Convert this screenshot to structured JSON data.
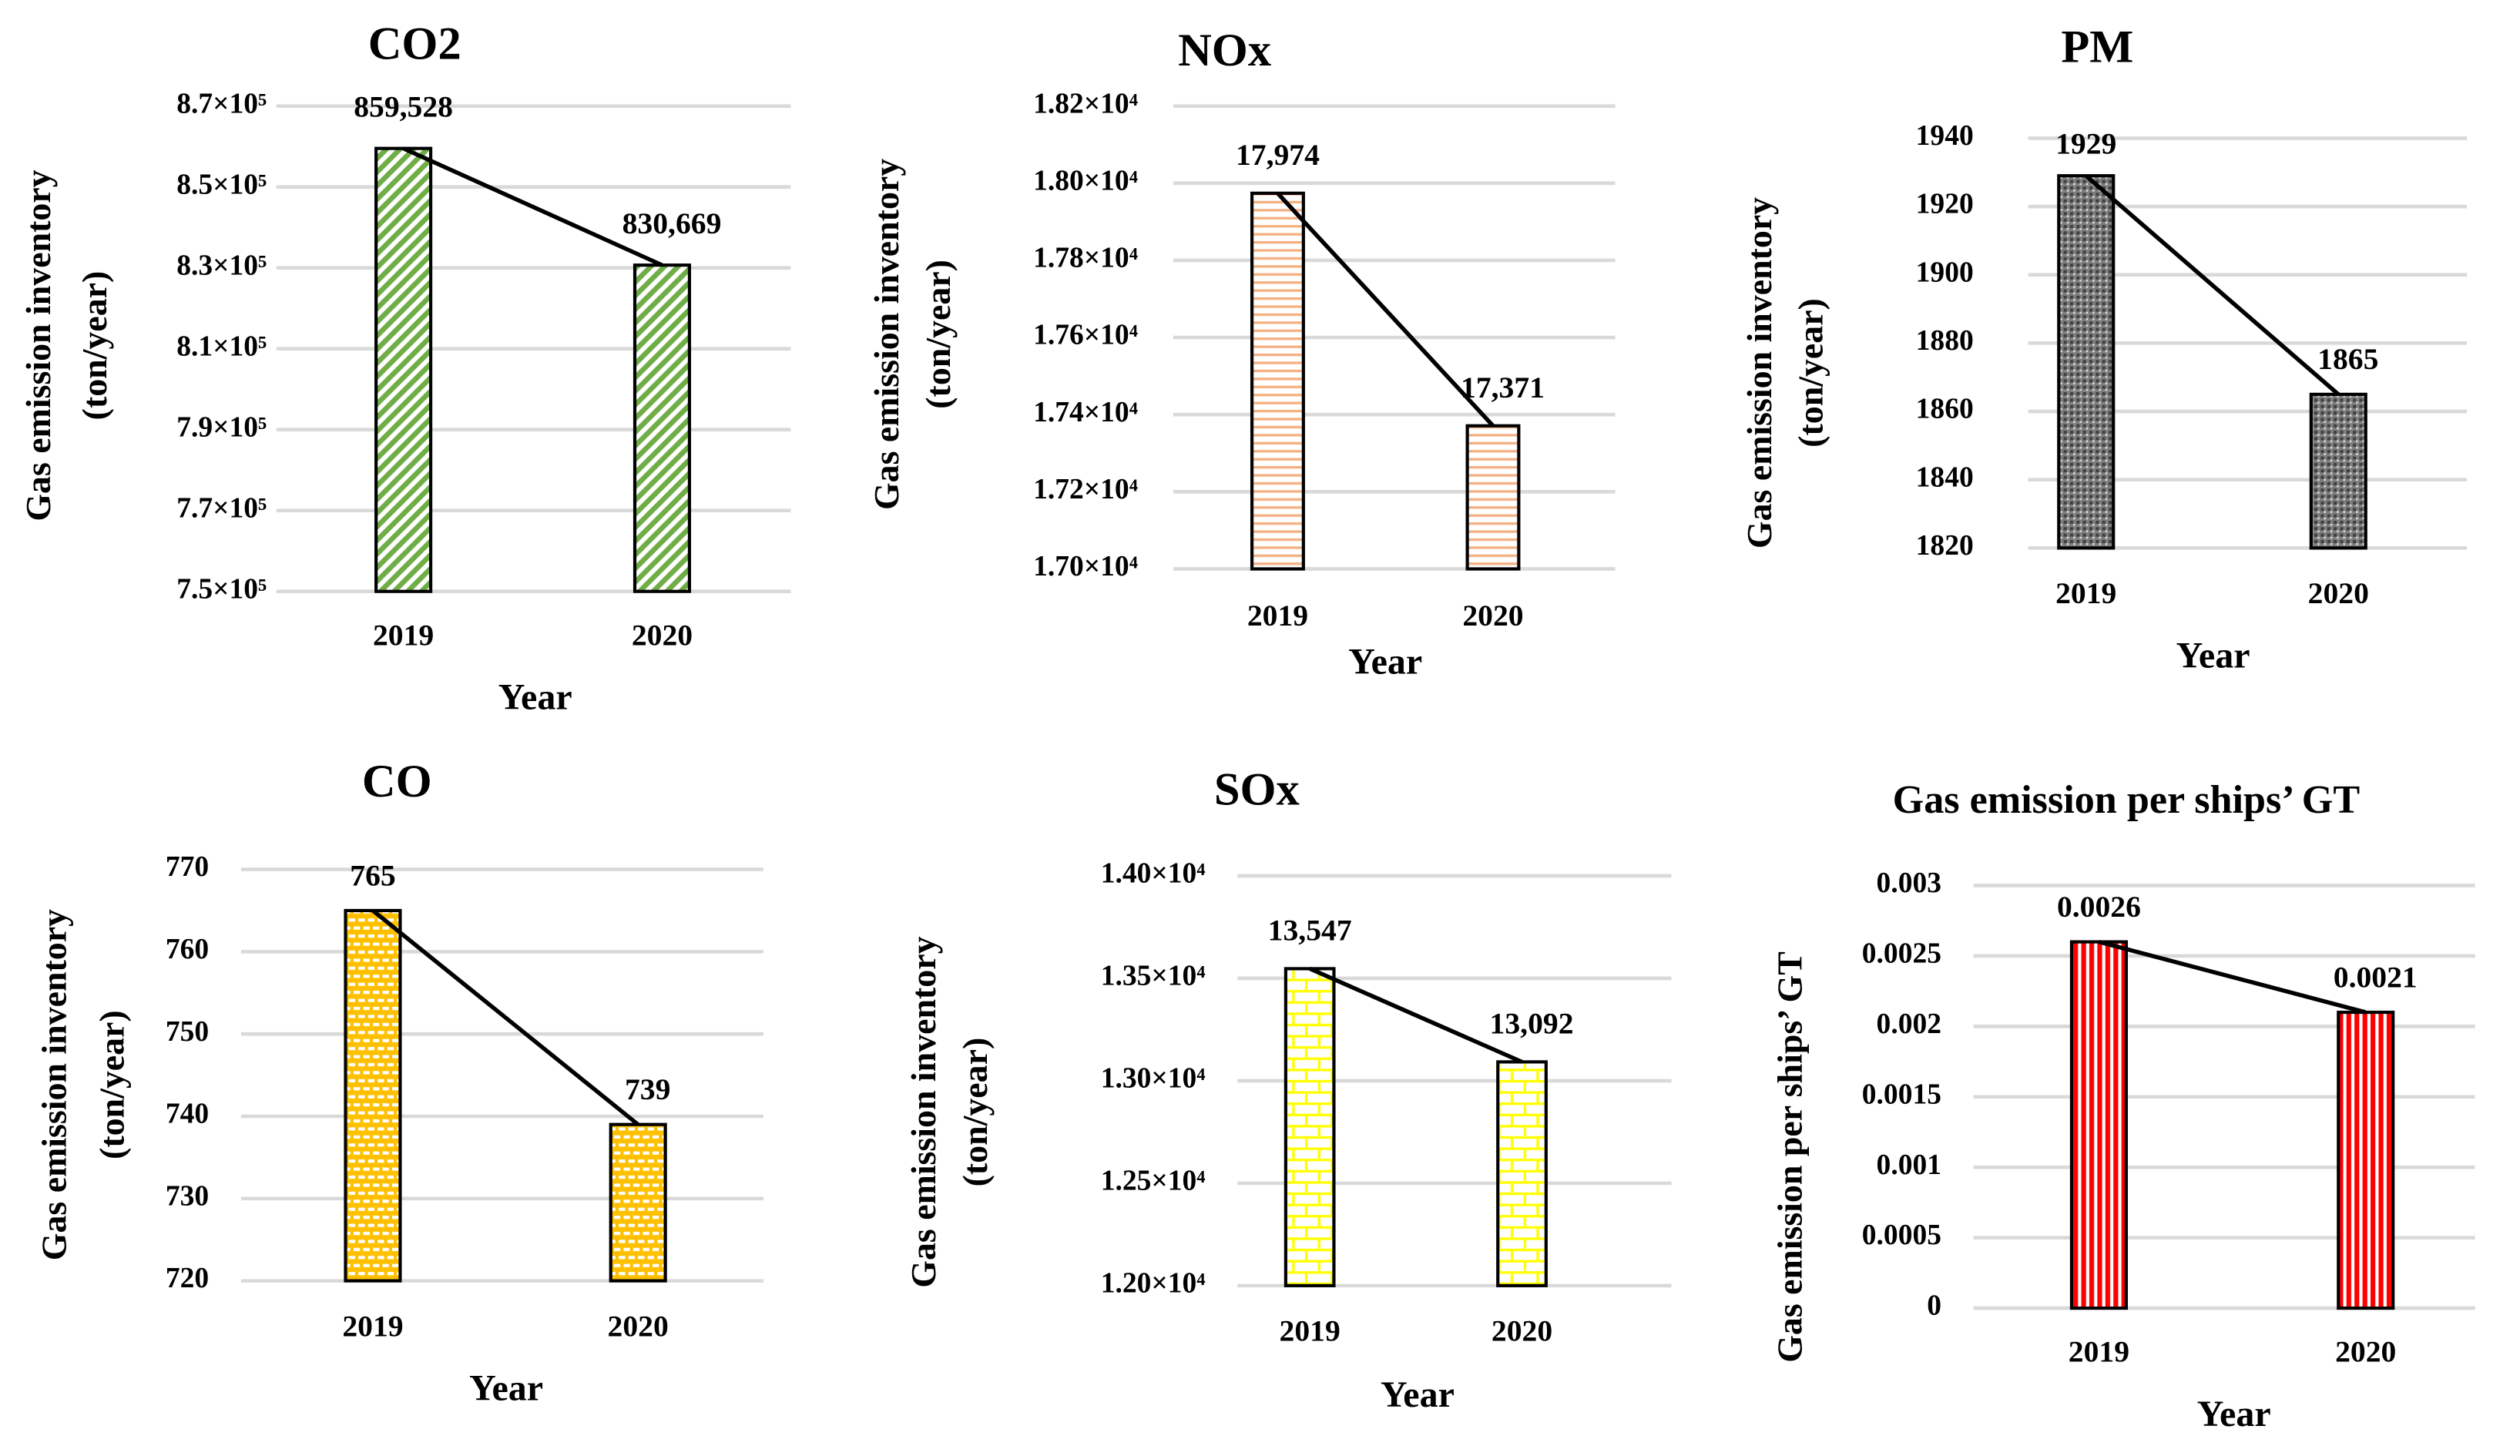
{
  "chart_data": [
    {
      "type": "bar",
      "id": "co2",
      "title": "CO2",
      "categories": [
        "2019",
        "2020"
      ],
      "values": [
        859528,
        830669
      ],
      "data_labels": [
        "859,528",
        "830,669"
      ],
      "xlabel": "Year",
      "ylabel": [
        "Gas emission inventory",
        "(ton/year)"
      ],
      "ylim": [
        750000,
        870000
      ],
      "yticks": [
        750000,
        770000,
        790000,
        810000,
        830000,
        850000,
        870000
      ],
      "ytick_labels": [
        "7.5×10⁵",
        "7.7×10⁵",
        "7.9×10⁵",
        "8.1×10⁵",
        "8.3×10⁵",
        "8.5×10⁵",
        "8.7×10⁵"
      ],
      "pattern": "diagonal",
      "color": "#70ad47",
      "grid": true,
      "trend_line": true
    },
    {
      "type": "bar",
      "id": "nox",
      "title": "NOx",
      "categories": [
        "2019",
        "2020"
      ],
      "values": [
        17974,
        17371
      ],
      "data_labels": [
        "17,974",
        "17,371"
      ],
      "xlabel": "Year",
      "ylabel": [
        "Gas emission inventory",
        "(ton/year)"
      ],
      "ylim": [
        17000,
        18200
      ],
      "yticks": [
        17000,
        17200,
        17400,
        17600,
        17800,
        18000,
        18200
      ],
      "ytick_labels": [
        "1.70×10⁴",
        "1.72×10⁴",
        "1.74×10⁴",
        "1.76×10⁴",
        "1.78×10⁴",
        "1.80×10⁴",
        "1.82×10⁴"
      ],
      "pattern": "horizontal",
      "color": "#f4b183",
      "grid": true,
      "trend_line": true
    },
    {
      "type": "bar",
      "id": "pm",
      "title": "PM",
      "categories": [
        "2019",
        "2020"
      ],
      "values": [
        1929,
        1865
      ],
      "data_labels": [
        "1929",
        "1865"
      ],
      "xlabel": "Year",
      "ylabel": [
        "Gas emission inventory",
        "(ton/year)"
      ],
      "ylim": [
        1820,
        1940
      ],
      "yticks": [
        1820,
        1840,
        1860,
        1880,
        1900,
        1920,
        1940
      ],
      "ytick_labels": [
        "1820",
        "1840",
        "1860",
        "1880",
        "1900",
        "1920",
        "1940"
      ],
      "pattern": "dots",
      "color": "#595959",
      "grid": true,
      "trend_line": true
    },
    {
      "type": "bar",
      "id": "co",
      "title": "CO",
      "categories": [
        "2019",
        "2020"
      ],
      "values": [
        765,
        739
      ],
      "data_labels": [
        "765",
        "739"
      ],
      "xlabel": "Year",
      "ylabel": [
        "Gas emission inventory",
        "(ton/year)"
      ],
      "ylim": [
        720,
        770
      ],
      "yticks": [
        720,
        730,
        740,
        750,
        760,
        770
      ],
      "ytick_labels": [
        "720",
        "730",
        "740",
        "750",
        "760",
        "770"
      ],
      "pattern": "brick-filled",
      "color": "#ffc000",
      "grid": true,
      "trend_line": true
    },
    {
      "type": "bar",
      "id": "sox",
      "title": "SOx",
      "categories": [
        "2019",
        "2020"
      ],
      "values": [
        13547,
        13092
      ],
      "data_labels": [
        "13,547",
        "13,092"
      ],
      "xlabel": "Year",
      "ylabel": [
        "Gas emission inventory",
        "(ton/year)"
      ],
      "ylim": [
        12000,
        14000
      ],
      "yticks": [
        12000,
        12500,
        13000,
        13500,
        14000
      ],
      "ytick_labels": [
        "1.20×10⁴",
        "1.25×10⁴",
        "1.30×10⁴",
        "1.35×10⁴",
        "1.40×10⁴"
      ],
      "pattern": "brick-lines",
      "color": "#ffff00",
      "grid": true,
      "trend_line": true
    },
    {
      "type": "bar",
      "id": "gt",
      "title": "Gas emission per ships’ GT",
      "categories": [
        "2019",
        "2020"
      ],
      "values": [
        0.0026,
        0.0021
      ],
      "data_labels": [
        "0.0026",
        "0.0021"
      ],
      "xlabel": "Year",
      "ylabel": [
        "Gas emission per ships’ GT"
      ],
      "ylim": [
        0,
        0.003
      ],
      "yticks": [
        0,
        0.0005,
        0.001,
        0.0015,
        0.002,
        0.0025,
        0.003
      ],
      "ytick_labels": [
        "0",
        "0.0005",
        "0.001",
        "0.0015",
        "0.002",
        "0.0025",
        "0.003"
      ],
      "pattern": "vertical",
      "color": "#ff0000",
      "grid": true,
      "trend_line": true
    }
  ]
}
